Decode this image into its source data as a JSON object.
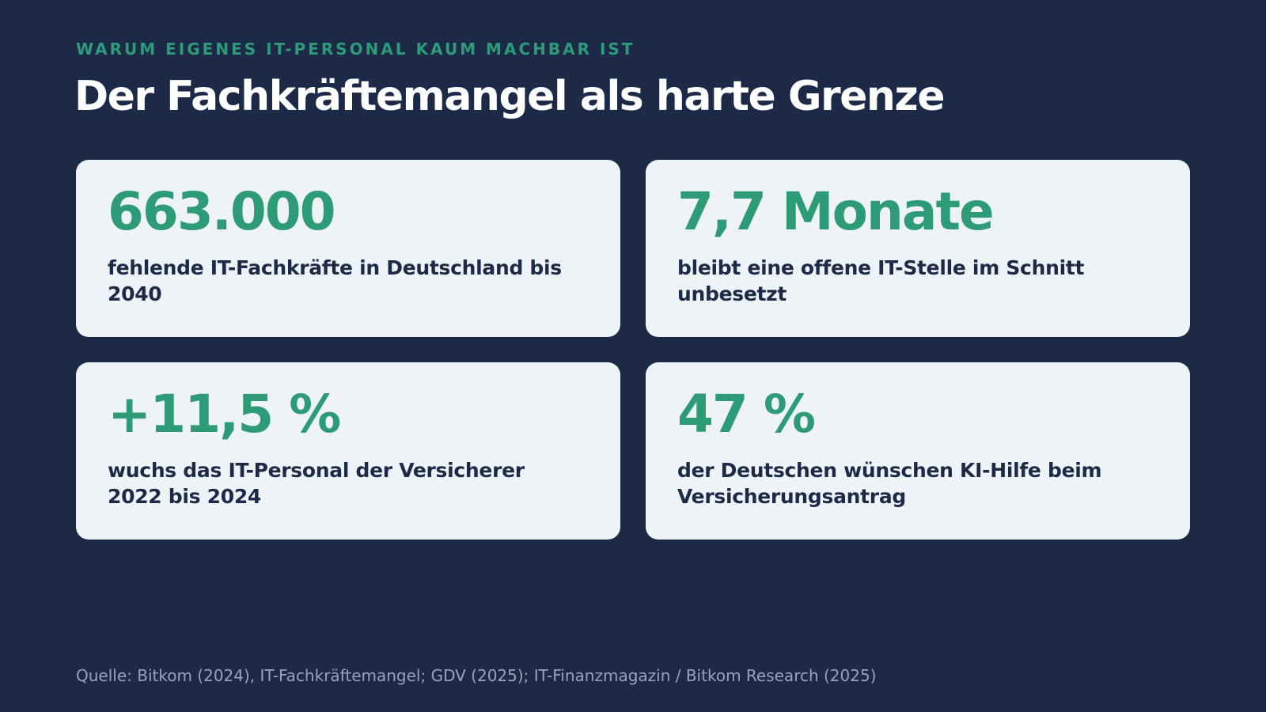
{
  "header": {
    "eyebrow": "WARUM EIGENES IT-PERSONAL KAUM MACHBAR IST",
    "title": "Der Fachkräftemangel als harte Grenze"
  },
  "stats": [
    {
      "value": "663.000",
      "description": "fehlende IT-Fachkräfte in Deutschland bis 2040"
    },
    {
      "value": "7,7 Monate",
      "description": "bleibt eine offene IT-Stelle im Schnitt unbesetzt"
    },
    {
      "value": "+11,5 %",
      "description": "wuchs das IT-Personal der Versicherer 2022 bis 2024"
    },
    {
      "value": "47 %",
      "description": "der Deutschen wünschen KI-Hilfe beim Versicherungsantrag"
    }
  ],
  "footer": {
    "source": "Quelle: Bitkom (2024), IT-Fachkräftemangel; GDV (2025); IT-Finanzmagazin / Bitkom Research (2025)"
  },
  "colors": {
    "background": "#1c2a47",
    "accent": "#2e9b78",
    "card": "#eef3f8",
    "text_dark": "#1c2a47",
    "source_text": "#9aa3b4"
  }
}
